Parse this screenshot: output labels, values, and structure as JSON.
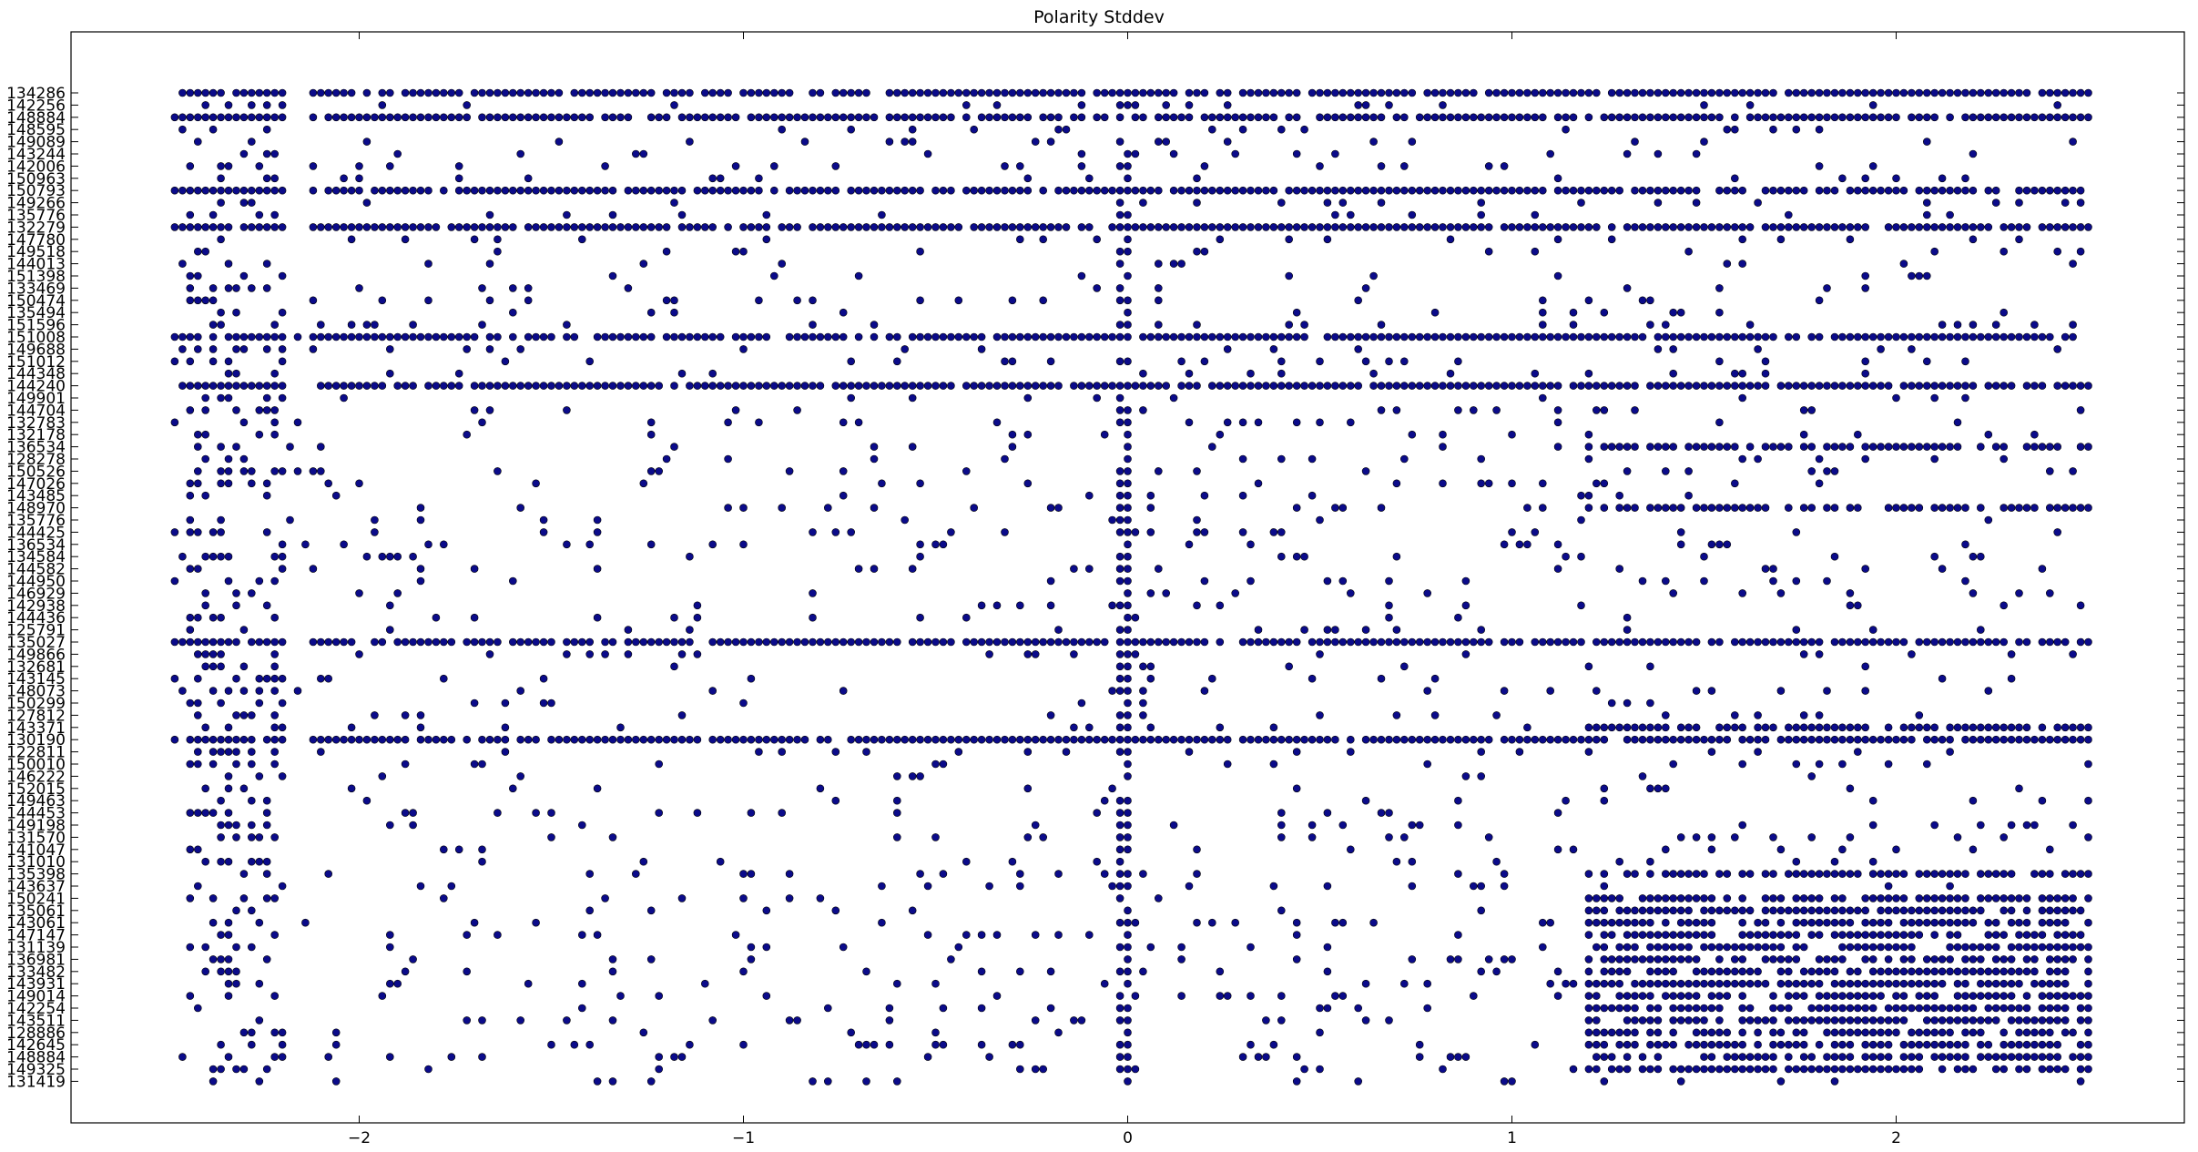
{
  "chart_data": {
    "type": "scatter",
    "title": "Polarity Stddev",
    "xlabel": "",
    "ylabel": "",
    "xlim": [
      -2.75,
      2.75
    ],
    "x_ticks": [
      -2,
      -1,
      0,
      1,
      2
    ],
    "x_tick_labels": [
      "−2",
      "−1",
      "0",
      "1",
      "2"
    ],
    "grid": false,
    "legend": "none",
    "marker": {
      "fill": "#0b0b8a",
      "edge": "#000000"
    },
    "categories": [
      "134286",
      "142256",
      "148884",
      "148595",
      "149089",
      "143244",
      "142006",
      "150963",
      "150793",
      "149266",
      "135776",
      "132279",
      "147780",
      "149518",
      "144013",
      "151398",
      "133469",
      "150474",
      "135494",
      "151596",
      "151008",
      "149688",
      "151012",
      "144348",
      "144240",
      "149901",
      "144704",
      "132783",
      "132178",
      "136534",
      "128278",
      "150526",
      "147026",
      "143485",
      "148970",
      "135776",
      "144425",
      "136534",
      "134584",
      "144582",
      "144950",
      "146929",
      "142938",
      "144436",
      "125791",
      "135027",
      "149866",
      "132681",
      "143145",
      "148073",
      "150299",
      "127812",
      "143371",
      "130190",
      "122811",
      "150010",
      "146222",
      "152015",
      "149463",
      "144453",
      "149198",
      "131570",
      "141047",
      "131010",
      "135398",
      "143637",
      "150241",
      "135061",
      "143061",
      "147147",
      "131139",
      "136981",
      "133482",
      "143931",
      "149014",
      "142254",
      "143511",
      "128886",
      "142645",
      "148884",
      "149325",
      "131419"
    ],
    "series": [
      {
        "values": []
      }
    ]
  }
}
